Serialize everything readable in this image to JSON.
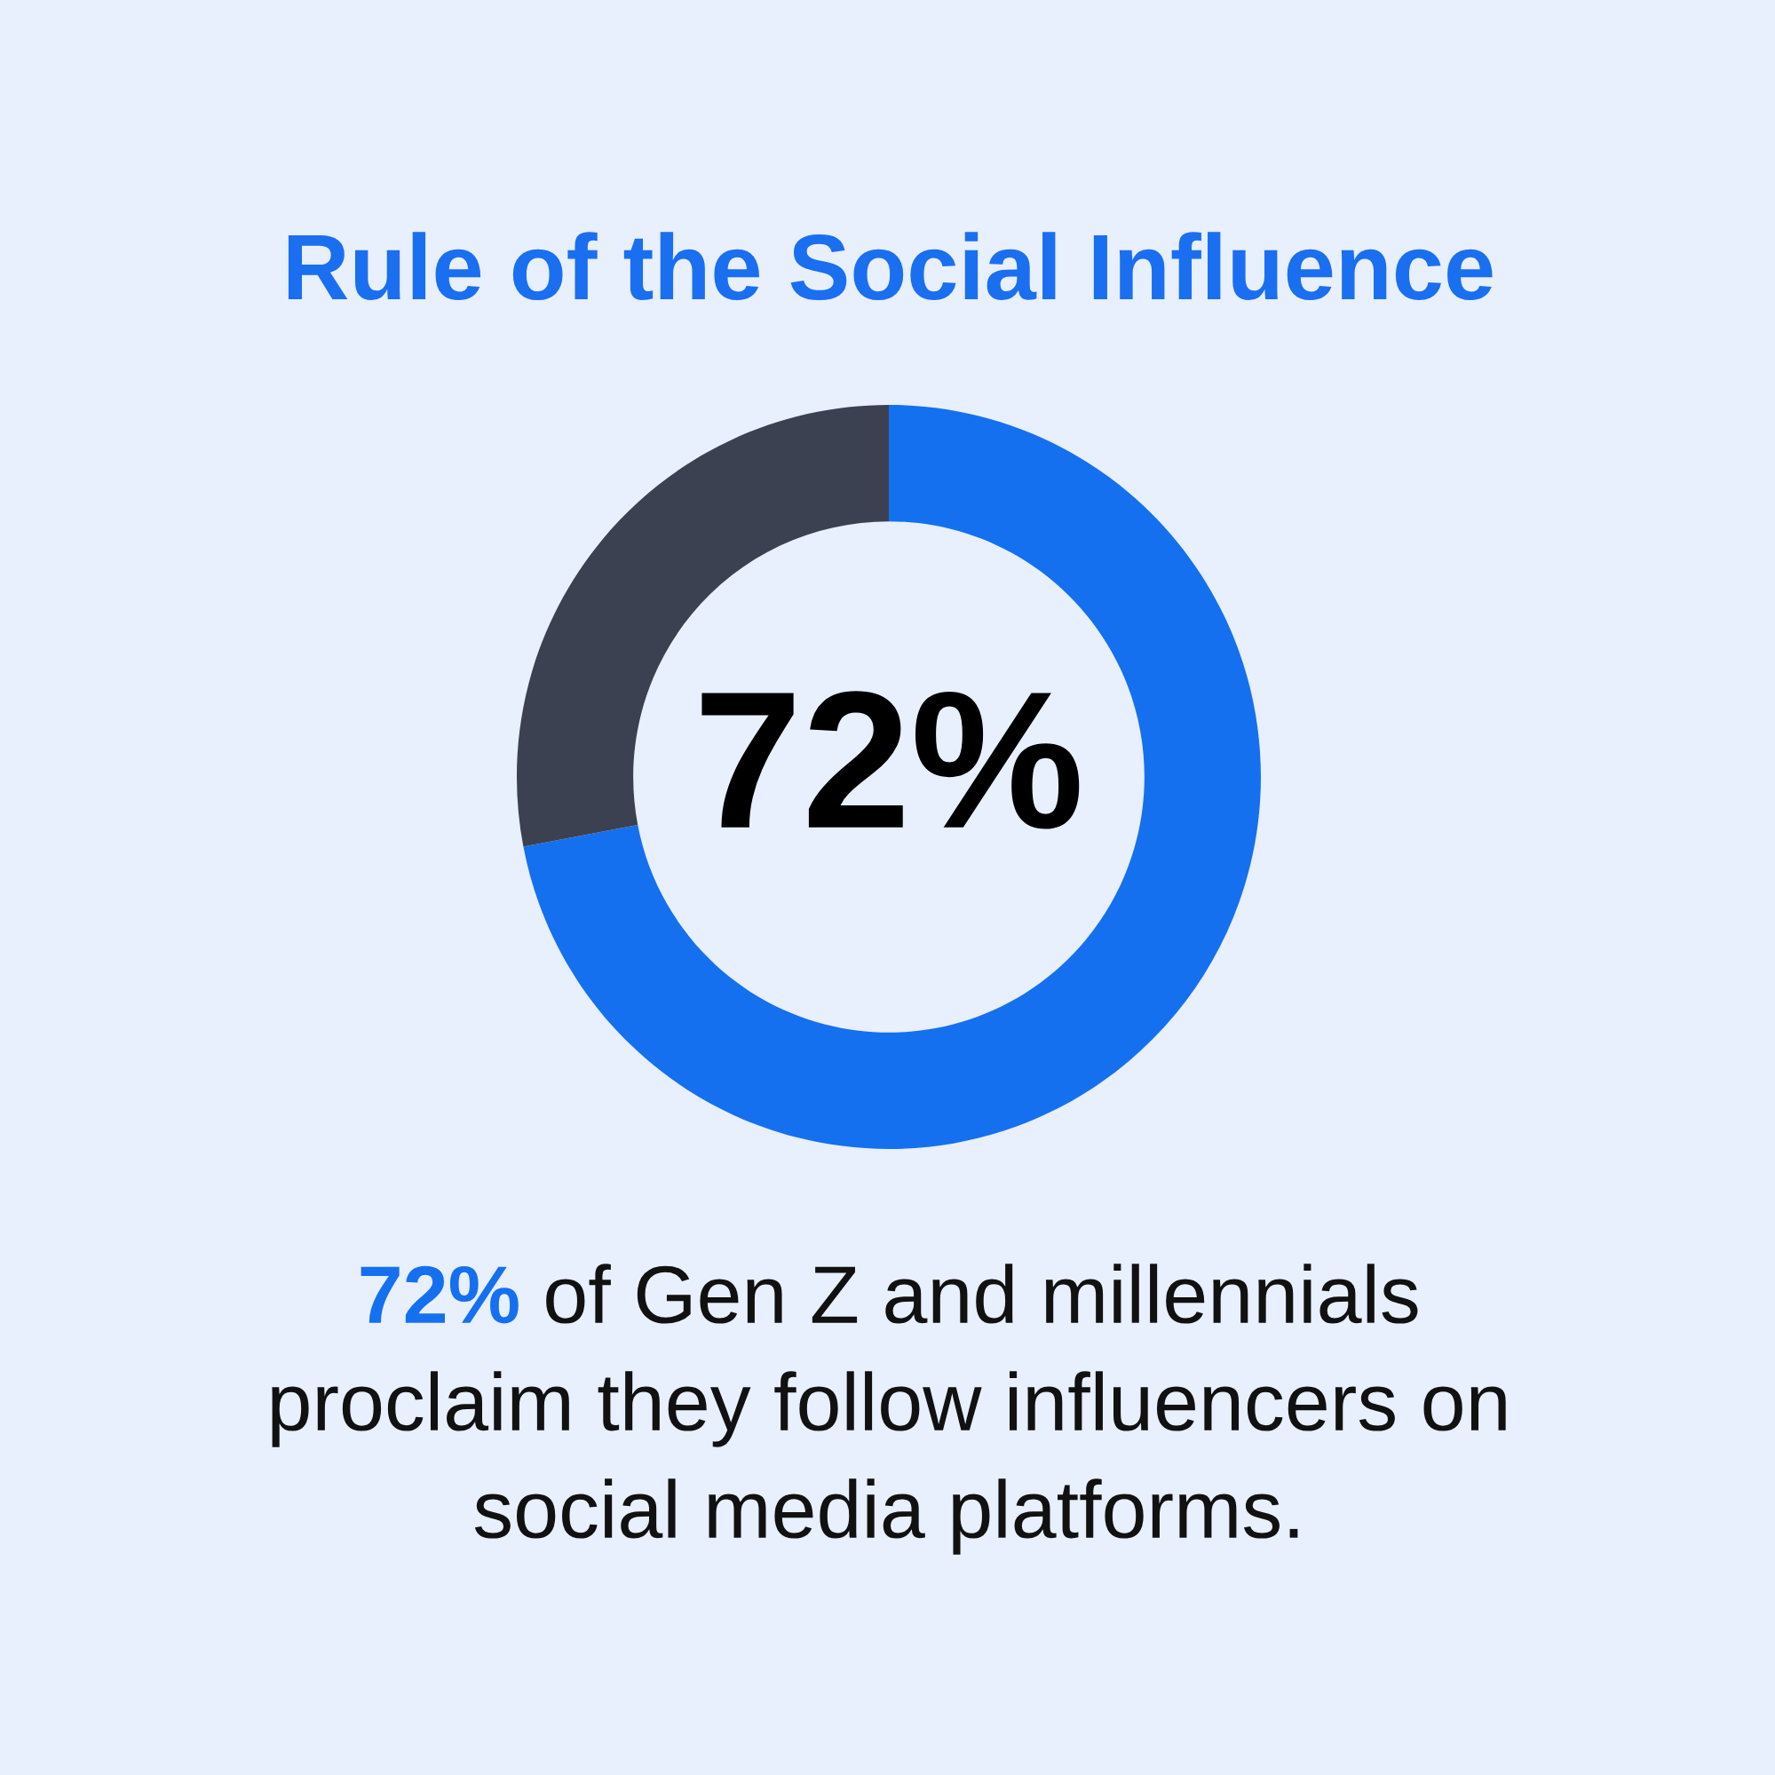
{
  "chart_data": {
    "type": "donut",
    "title": "Rule of the Social Influence",
    "categories": [
      null,
      null
    ],
    "values": [
      72,
      28
    ],
    "colors": [
      "#1570f0",
      "#3b4150"
    ],
    "annotations": [
      "72%",
      "72% of Gen Z and millennials proclaim they follow influencers on social media platforms."
    ]
  }
}
